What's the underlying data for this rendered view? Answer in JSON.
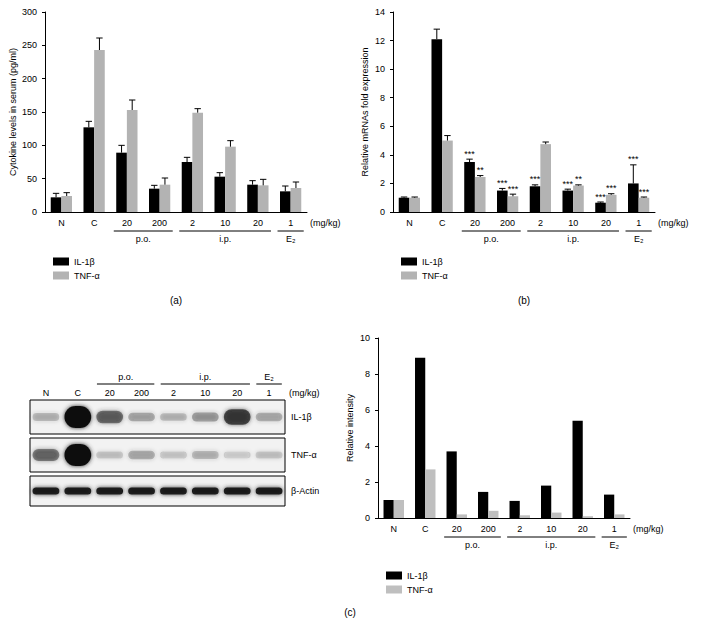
{
  "chart_data": [
    {
      "type": "bar",
      "panel": "(a)",
      "y_label": "Cytokine levels in serum (pg/ml)",
      "categories": [
        "N",
        "C",
        "20",
        "200",
        "2",
        "10",
        "20",
        "1"
      ],
      "groups": [
        {
          "label": "p.o.",
          "from": 2,
          "to": 3
        },
        {
          "label": "i.p.",
          "from": 4,
          "to": 6
        },
        {
          "label": "E₂",
          "from": 7,
          "to": 7
        }
      ],
      "unit": "(mg/kg)",
      "series": [
        {
          "name": "IL-1β",
          "color": "#000000",
          "values": [
            22,
            127,
            89,
            35,
            75,
            53,
            41,
            31
          ],
          "errors": [
            6,
            9,
            11,
            5,
            7,
            6,
            6,
            8
          ]
        },
        {
          "name": "TNF-α",
          "color": "#b3b3b3",
          "values": [
            24,
            243,
            153,
            41,
            149,
            98,
            40,
            36
          ],
          "errors": [
            5,
            18,
            15,
            10,
            6,
            9,
            9,
            9
          ]
        }
      ],
      "ylim": [
        0,
        300
      ],
      "yticks": [
        0,
        50,
        100,
        150,
        200,
        250,
        300
      ],
      "grid": false,
      "legend": "bottom-left"
    },
    {
      "type": "bar",
      "panel": "(b)",
      "y_label": "Relative mRNAs fold expression",
      "categories": [
        "N",
        "C",
        "20",
        "200",
        "2",
        "10",
        "20",
        "1"
      ],
      "groups": [
        {
          "label": "p.o.",
          "from": 2,
          "to": 3
        },
        {
          "label": "i.p.",
          "from": 4,
          "to": 6
        },
        {
          "label": "E₂",
          "from": 7,
          "to": 7
        }
      ],
      "unit": "(mg/kg)",
      "series": [
        {
          "name": "IL-1β",
          "color": "#000000",
          "values": [
            1.0,
            12.1,
            3.5,
            1.5,
            1.8,
            1.5,
            0.65,
            2.0
          ],
          "errors": [
            0.05,
            0.7,
            0.2,
            0.15,
            0.1,
            0.1,
            0.05,
            1.3
          ],
          "significance": [
            null,
            null,
            "***",
            "***",
            "***",
            "***",
            "***",
            "***"
          ]
        },
        {
          "name": "TNF-α",
          "color": "#b3b3b3",
          "values": [
            1.0,
            5.0,
            2.45,
            1.1,
            4.75,
            1.85,
            1.2,
            1.0
          ],
          "errors": [
            0.05,
            0.35,
            0.1,
            0.15,
            0.15,
            0.05,
            0.08,
            0.05
          ],
          "significance": [
            null,
            null,
            "**",
            "***",
            null,
            "**",
            "***",
            "***"
          ]
        }
      ],
      "ylim": [
        0,
        14
      ],
      "yticks": [
        0,
        2,
        4,
        6,
        8,
        10,
        12,
        14
      ],
      "grid": false,
      "legend": "bottom-left"
    },
    {
      "type": "bar",
      "panel": "(c)",
      "y_label": "Relative intensity",
      "categories": [
        "N",
        "C",
        "20",
        "200",
        "2",
        "10",
        "20",
        "1"
      ],
      "groups": [
        {
          "label": "p.o.",
          "from": 2,
          "to": 3
        },
        {
          "label": "i.p.",
          "from": 4,
          "to": 6
        },
        {
          "label": "E₂",
          "from": 7,
          "to": 7
        }
      ],
      "unit": "(mg/kg)",
      "series": [
        {
          "name": "IL-1β",
          "color": "#000000",
          "values": [
            1.0,
            8.9,
            3.7,
            1.45,
            0.95,
            1.8,
            5.4,
            1.3
          ]
        },
        {
          "name": "TNF-α",
          "color": "#bfbfbf",
          "values": [
            1.0,
            2.7,
            0.2,
            0.4,
            0.15,
            0.3,
            0.1,
            0.2
          ]
        }
      ],
      "ylim": [
        0,
        10
      ],
      "yticks": [
        0,
        2,
        4,
        6,
        8,
        10
      ],
      "grid": false,
      "legend": "bottom-left"
    }
  ],
  "blot": {
    "lanes": [
      "N",
      "C",
      "20",
      "200",
      "2",
      "10",
      "20",
      "1"
    ],
    "groups": [
      {
        "label": "p.o.",
        "from": 2,
        "to": 3
      },
      {
        "label": "i.p.",
        "from": 4,
        "to": 6
      },
      {
        "label": "E₂",
        "from": 7,
        "to": 7
      }
    ],
    "unit": "(mg/kg)",
    "rows": [
      "IL-1β",
      "TNF-α",
      "β-Actin"
    ]
  }
}
